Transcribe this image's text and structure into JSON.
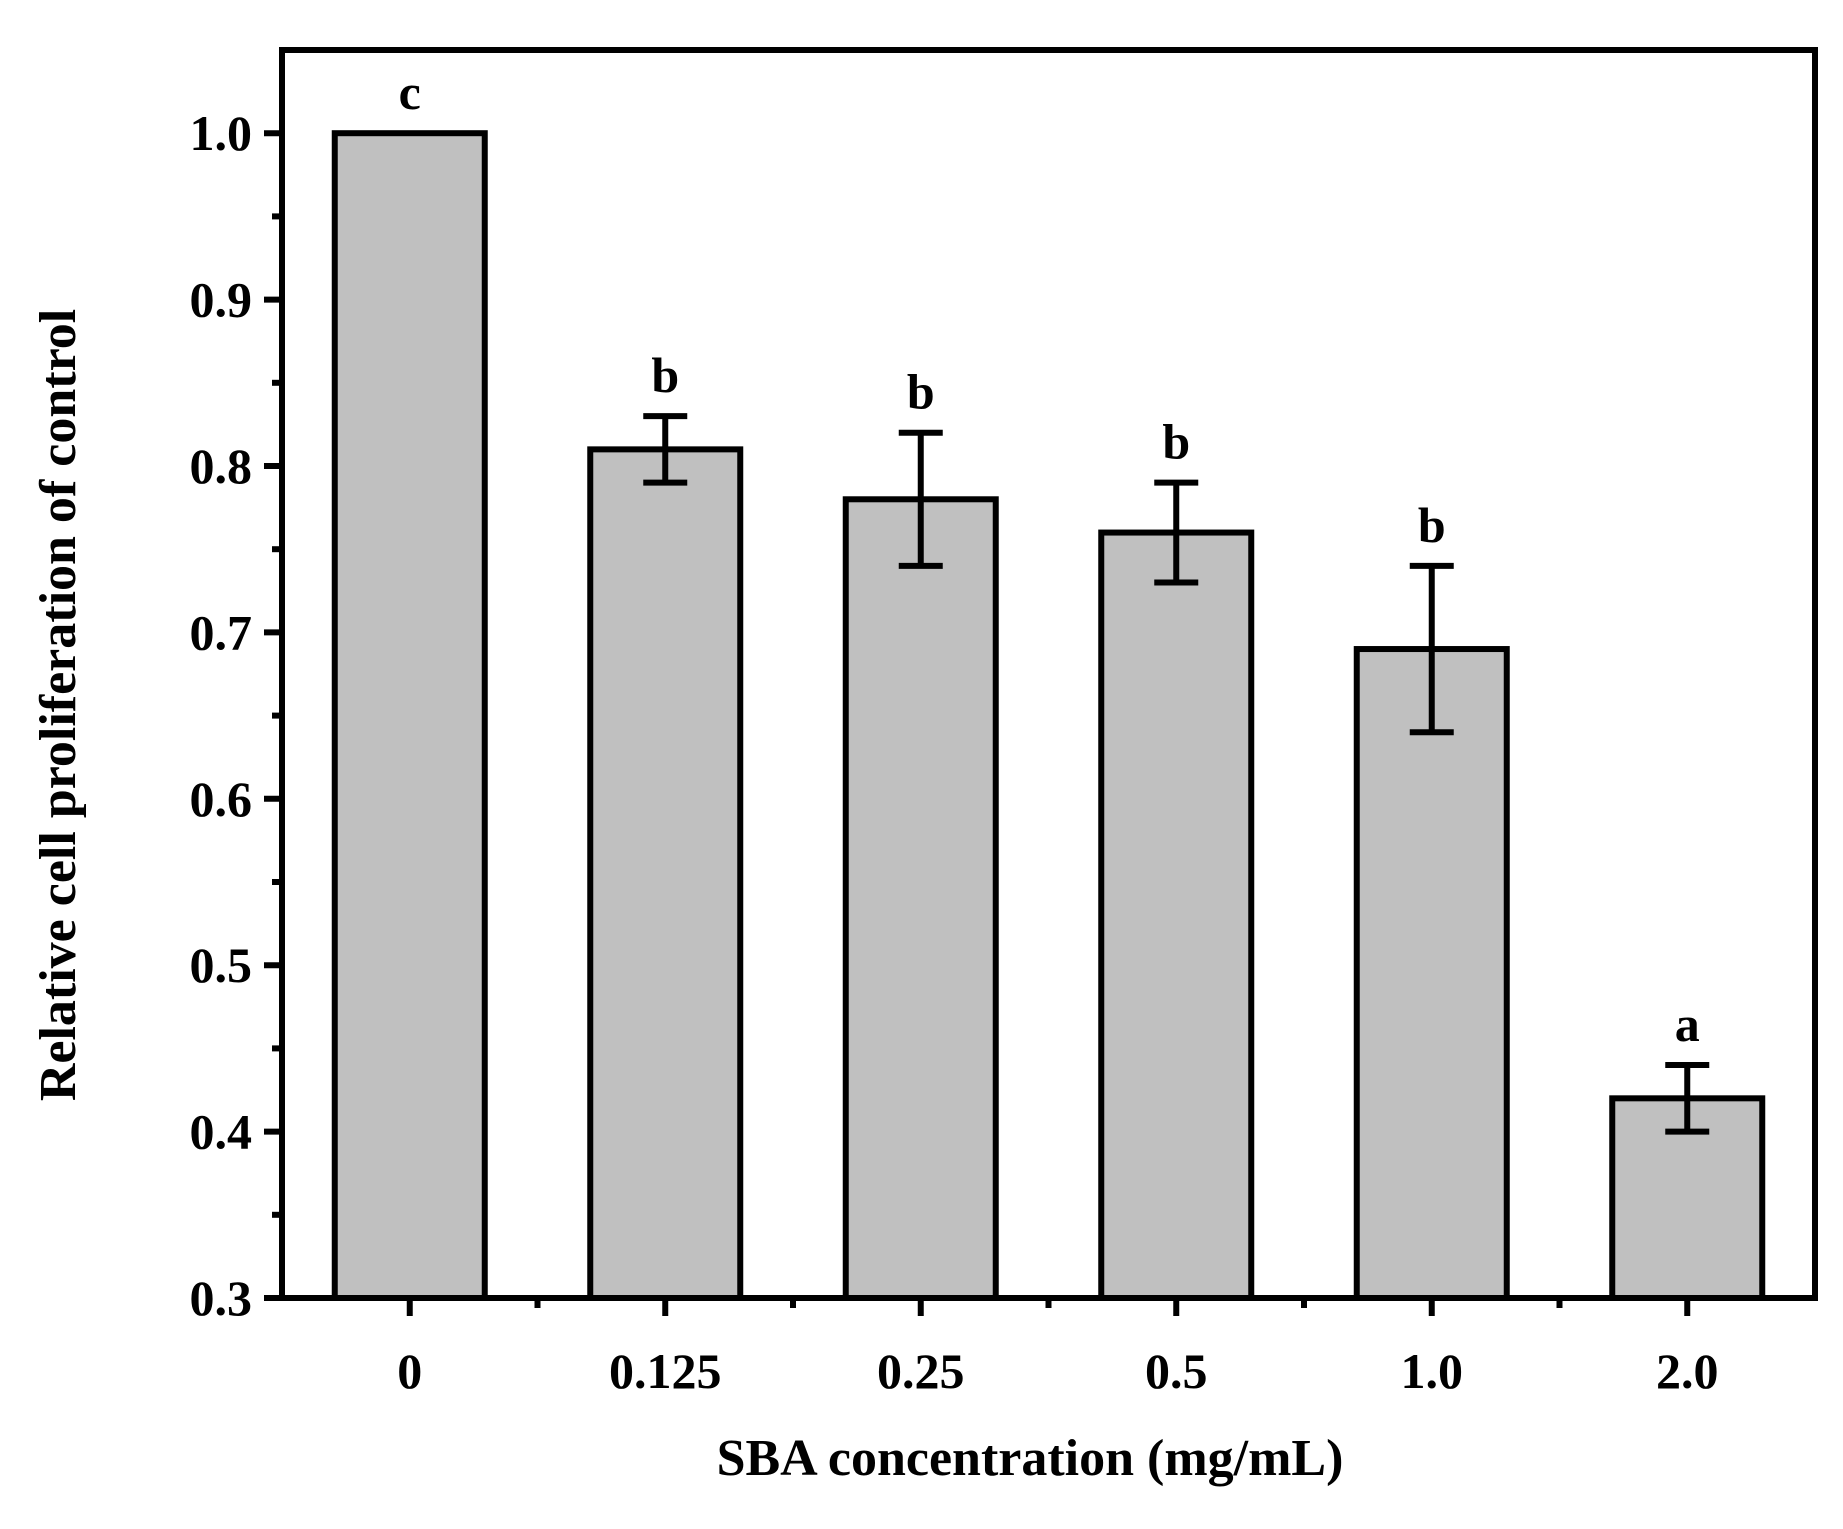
{
  "chart_data": {
    "type": "bar",
    "title": "",
    "xlabel": "SBA concentration (mg/mL)",
    "ylabel": "Relative cell proliferation of control",
    "categories": [
      "0",
      "0.125",
      "0.25",
      "0.5",
      "1.0",
      "2.0"
    ],
    "values": [
      1.0,
      0.81,
      0.78,
      0.76,
      0.69,
      0.42
    ],
    "error_upper": [
      1.0,
      0.83,
      0.82,
      0.79,
      0.74,
      0.44
    ],
    "error_lower": [
      1.0,
      0.79,
      0.74,
      0.73,
      0.64,
      0.4
    ],
    "significance_labels": [
      "c",
      "b",
      "b",
      "b",
      "b",
      "a"
    ],
    "ylim": [
      0.3,
      1.05
    ],
    "yticks": [
      0.3,
      0.4,
      0.5,
      0.6,
      0.7,
      0.8,
      0.9,
      1.0
    ],
    "ytick_labels": [
      "0.3",
      "0.4",
      "0.5",
      "0.6",
      "0.7",
      "0.8",
      "0.9",
      "1.0"
    ],
    "grid": false,
    "colors": {
      "bar_fill": "#c0c0c0",
      "bar_edge": "#000000",
      "axis": "#000000"
    }
  }
}
